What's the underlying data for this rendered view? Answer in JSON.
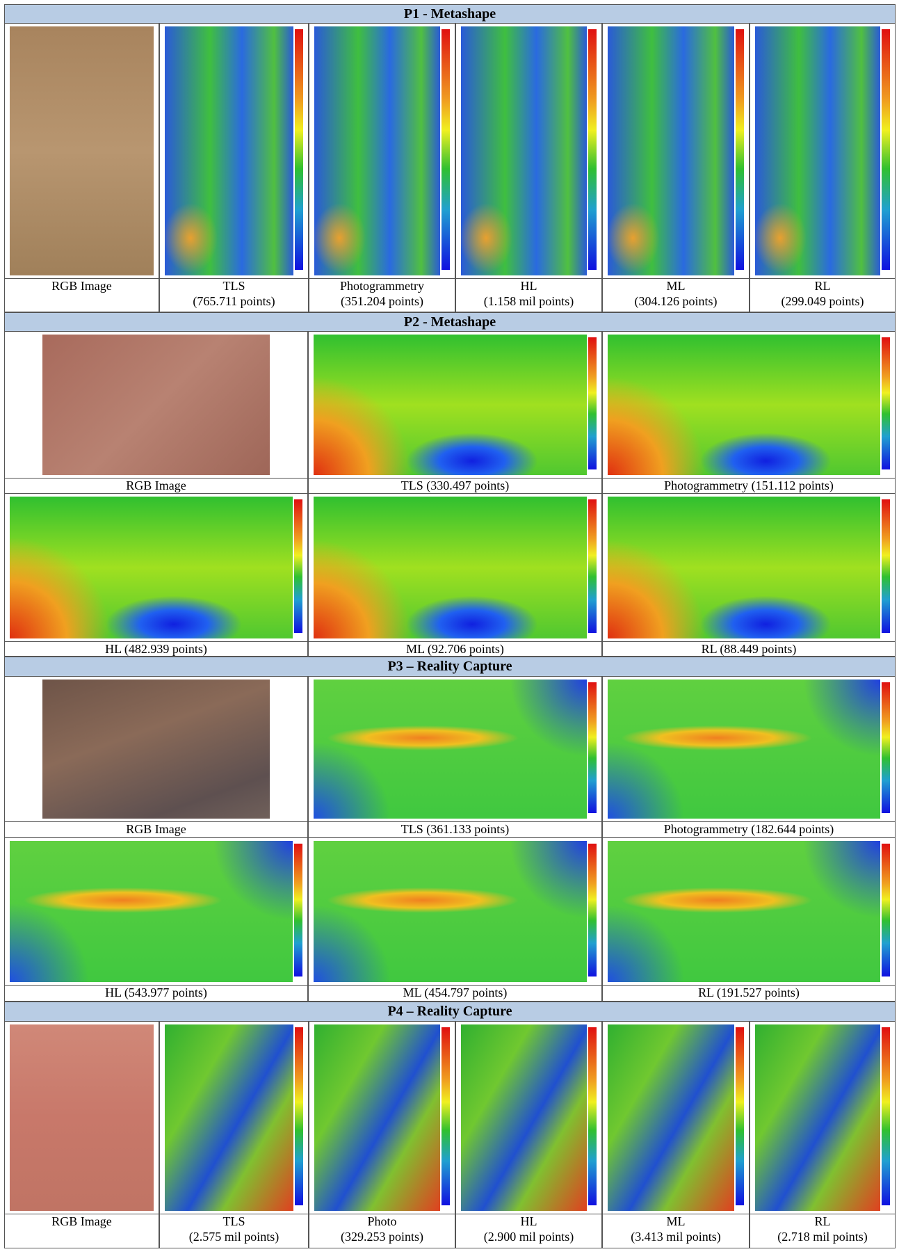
{
  "sections": [
    {
      "title": "P1 - Metashape",
      "rows": [
        [
          {
            "label": "RGB Image"
          },
          {
            "label": "TLS",
            "points": "(765.711 points)"
          },
          {
            "label": "Photogrammetry",
            "points": "(351.204 points)"
          },
          {
            "label": "HL",
            "points": "(1.158 mil points)"
          },
          {
            "label": "ML",
            "points": "(304.126 points)"
          },
          {
            "label": "RL",
            "points": "(299.049 points)"
          }
        ]
      ]
    },
    {
      "title": "P2 - Metashape",
      "rows": [
        [
          {
            "label": "RGB Image"
          },
          {
            "label": "TLS (330.497 points)"
          },
          {
            "label": "Photogrammetry (151.112 points)"
          }
        ],
        [
          {
            "label": "HL (482.939 points)"
          },
          {
            "label": "ML (92.706 points)"
          },
          {
            "label": "RL (88.449 points)"
          }
        ]
      ]
    },
    {
      "title": "P3 – Reality Capture",
      "rows": [
        [
          {
            "label": "RGB Image"
          },
          {
            "label": "TLS (361.133 points)"
          },
          {
            "label": "Photogrammetry (182.644 points)"
          }
        ],
        [
          {
            "label": "HL (543.977 points)"
          },
          {
            "label": "ML (454.797 points)"
          },
          {
            "label": "RL (191.527 points)"
          }
        ]
      ]
    },
    {
      "title": "P4 – Reality Capture",
      "rows": [
        [
          {
            "label": "RGB Image"
          },
          {
            "label": "TLS",
            "points": "(2.575 mil points)"
          },
          {
            "label": "Photo",
            "points": "(329.253 points)"
          },
          {
            "label": "HL",
            "points": "(2.900 mil points)"
          },
          {
            "label": "ML",
            "points": "(3.413 mil points)"
          },
          {
            "label": "RL",
            "points": "(2.718 mil points)"
          }
        ]
      ]
    }
  ]
}
